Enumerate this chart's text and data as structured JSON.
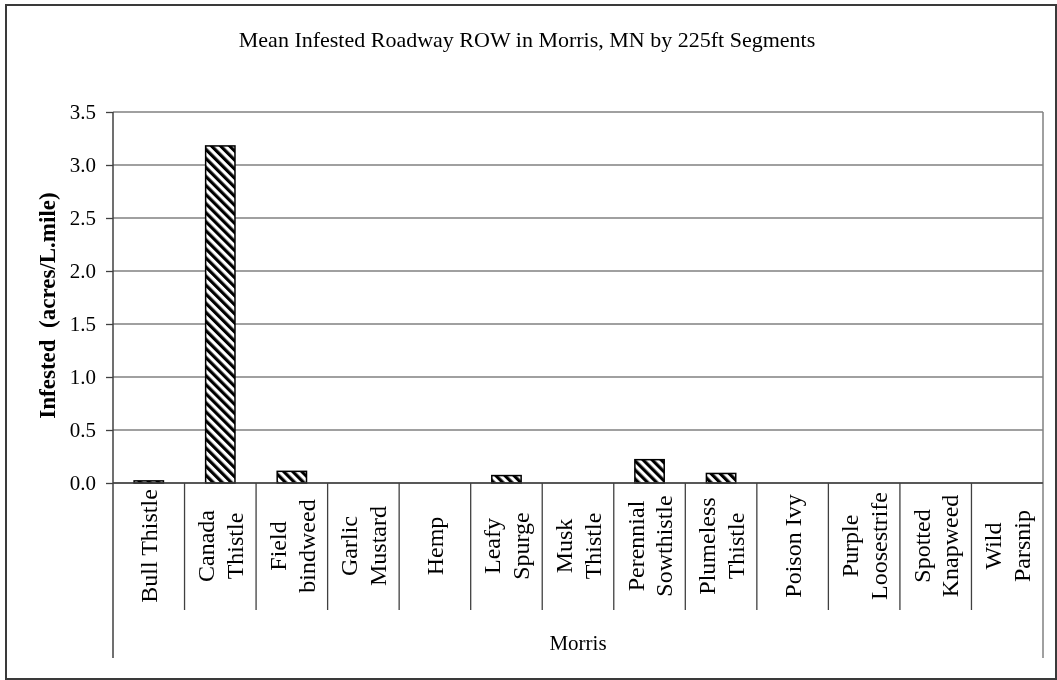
{
  "chart_data": {
    "type": "bar",
    "title": "Mean Infested Roadway ROW in Morris, MN by 225ft Segments",
    "xlabel": "Morris",
    "ylabel": "Infested  (acres/L.mile)",
    "categories": [
      "Bull Thistle",
      "Canada Thistle",
      "Field bindweed",
      "Garlic Mustard",
      "Hemp",
      "Leafy Spurge",
      "Musk Thistle",
      "Perennial Sowthistle",
      "Plumeless Thistle",
      "Poison Ivy",
      "Purple Loosestrife",
      "Spotted Knapweed",
      "Wild Parsnip"
    ],
    "values": [
      0.02,
      3.18,
      0.11,
      0,
      0,
      0.07,
      0,
      0.22,
      0.09,
      0,
      0,
      0,
      0
    ],
    "color": "#000000",
    "ylim": [
      0,
      3.5
    ],
    "yticks": [
      {
        "value": 0,
        "label": "0.0"
      },
      0.5,
      {
        "value": 1,
        "label": "1.0"
      },
      1.5,
      {
        "value": 2,
        "label": "2.0"
      },
      2.5,
      {
        "value": 3,
        "label": "3.0"
      },
      3.5
    ],
    "grid": "y"
  }
}
